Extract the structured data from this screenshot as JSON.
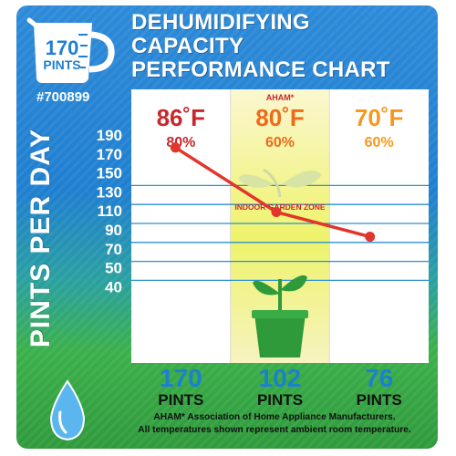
{
  "header": {
    "title_lines": [
      "DEHUMIDIFYING",
      "CAPACITY",
      "PERFORMANCE CHART"
    ],
    "capacity_badge": {
      "number": "170",
      "unit": "PINTS"
    },
    "model": "#700899"
  },
  "colors": {
    "temp_86": "#c8282d",
    "temp_80": "#ef6a1c",
    "temp_70": "#f39a1e",
    "line": "#e2352b",
    "results": "#1d7fd1",
    "zone_text": "#c8282d",
    "plant": "#2e9a3a"
  },
  "chart_data": {
    "type": "line",
    "title": "DEHUMIDIFYING CAPACITY PERFORMANCE CHART",
    "ylabel": "PINTS PER DAY",
    "yticks": [
      190,
      170,
      150,
      130,
      110,
      90,
      70,
      50,
      40
    ],
    "categories": [
      "86˚F",
      "80˚F",
      "70˚F"
    ],
    "humidity": [
      "80%",
      "60%",
      "60%"
    ],
    "category_colors": [
      "#c8282d",
      "#ef6a1c",
      "#f39a1e"
    ],
    "series": [
      {
        "values": [
          170,
          102,
          76
        ]
      }
    ],
    "category_note": "AHAM*",
    "zone_label": "INDOOR GARDEN ZONE",
    "results": [
      {
        "value": "170",
        "unit": "PINTS"
      },
      {
        "value": "102",
        "unit": "PINTS"
      },
      {
        "value": "76",
        "unit": "PINTS"
      }
    ],
    "footnote": [
      "AHAM* Association of Home Appliance Manufacturers.",
      "All temperatures shown represent ambient room temperature."
    ]
  }
}
